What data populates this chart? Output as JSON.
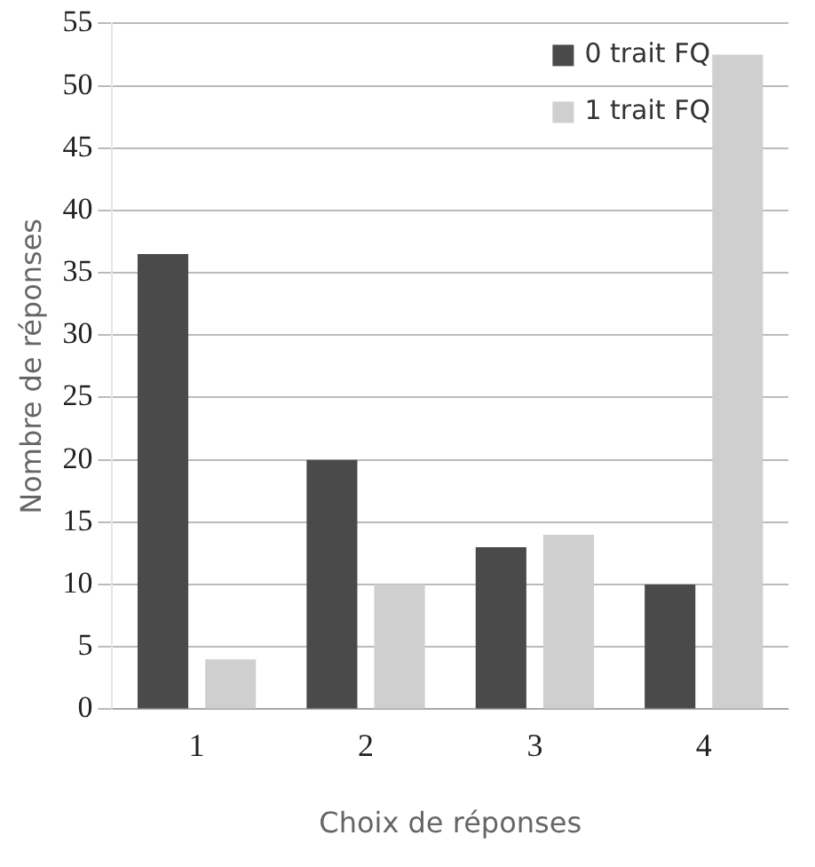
{
  "chart_data": {
    "type": "bar",
    "xlabel": "Choix de réponses",
    "ylabel": "Nombre de réponses",
    "categories": [
      "1",
      "2",
      "3",
      "4"
    ],
    "series": [
      {
        "name": "0 trait FQ",
        "color": "#4a4a4a",
        "values": [
          36.5,
          20,
          13,
          10
        ]
      },
      {
        "name": "1 trait FQ",
        "color": "#cfcfcf",
        "values": [
          4,
          10,
          14,
          52.5
        ]
      }
    ],
    "ylim": [
      0,
      55
    ],
    "yticks": [
      0,
      5,
      10,
      15,
      20,
      25,
      30,
      35,
      40,
      45,
      50,
      55
    ],
    "grid": "y",
    "legend": "top right"
  }
}
